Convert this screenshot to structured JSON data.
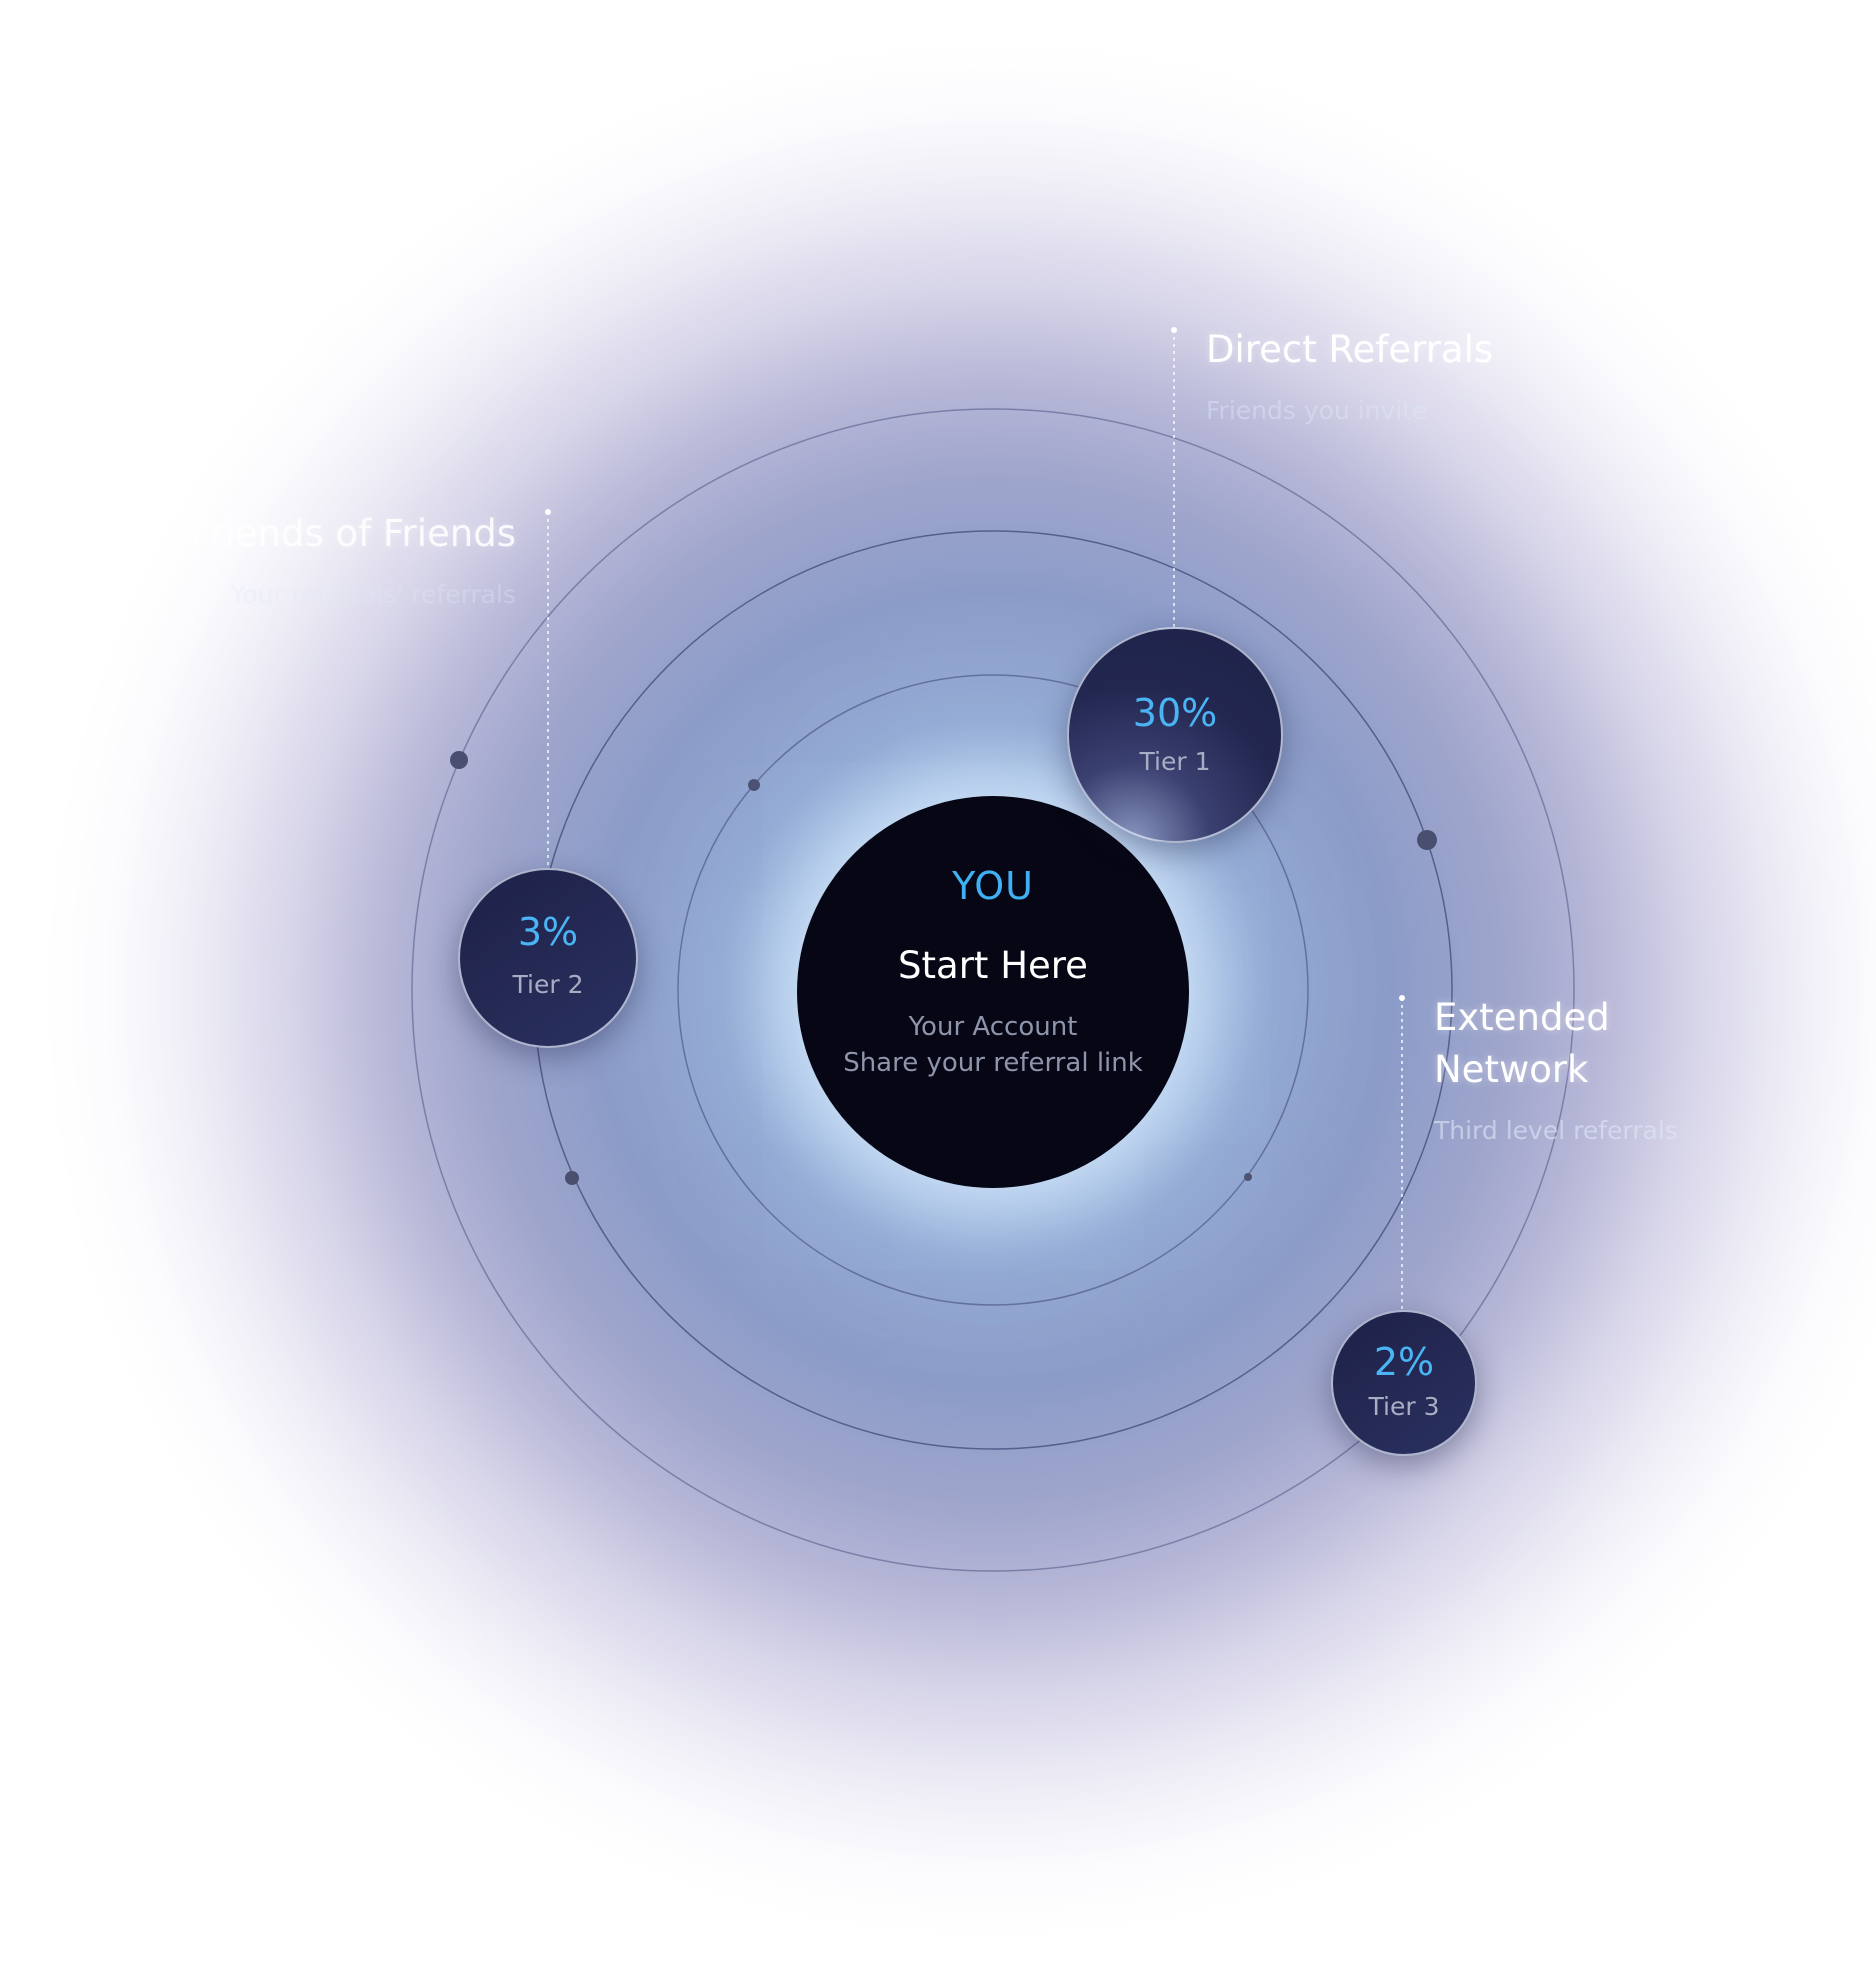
{
  "center": {
    "badge": "YOU",
    "title": "Start Here",
    "line1": "Your Account",
    "line2": "Share your referral link"
  },
  "tiers": [
    {
      "percent": "30%",
      "label": "Tier 1"
    },
    {
      "percent": "3%",
      "label": "Tier 2"
    },
    {
      "percent": "2%",
      "label": "Tier 3"
    }
  ],
  "callouts": {
    "direct": {
      "title": "Direct Referrals",
      "subtitle": "Friends you invite"
    },
    "friends": {
      "title": "Friends of Friends",
      "subtitle": "Your referrals' referrals"
    },
    "extended": {
      "title": "Extended Network",
      "subtitle": "Third level referrals"
    }
  },
  "colors": {
    "accent": "#3fb0f2",
    "center_fill": "#060614",
    "tier_fill": "#1f2349"
  }
}
